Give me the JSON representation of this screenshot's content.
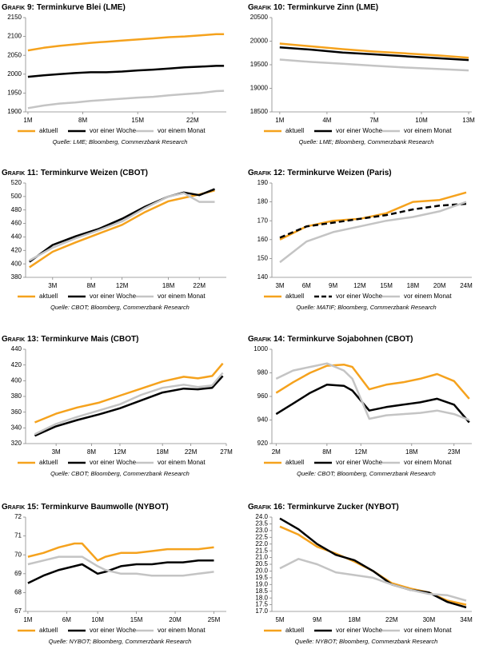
{
  "chart_data": [
    {
      "type": "line",
      "label": "Grafik 9:",
      "title": "Terminkurve Blei (LME)",
      "source": "Quelle: LME; Bloomberg, Commerzbank Research",
      "x": [
        1,
        3,
        5,
        7,
        9,
        11,
        13,
        15,
        17,
        19,
        21,
        23,
        25,
        26
      ],
      "xlim": [
        0.7,
        26.3
      ],
      "xticks": [
        {
          "value": 1,
          "label": "1M"
        },
        {
          "value": 8,
          "label": "8M"
        },
        {
          "value": 15,
          "label": "15M"
        },
        {
          "value": 22,
          "label": "22M"
        }
      ],
      "ylim": [
        1900,
        2150
      ],
      "yticks": [
        1900,
        1950,
        2000,
        2050,
        2100,
        2150
      ],
      "series": [
        {
          "name": "aktuell",
          "color": "#f5a21d",
          "values": [
            2063,
            2070,
            2075,
            2079,
            2083,
            2086,
            2089,
            2092,
            2095,
            2098,
            2100,
            2103,
            2106,
            2106
          ]
        },
        {
          "name": "vor einer Woche",
          "color": "#000000",
          "values": [
            1993,
            1997,
            2000,
            2003,
            2005,
            2005,
            2007,
            2010,
            2012,
            2015,
            2018,
            2020,
            2022,
            2022
          ]
        },
        {
          "name": "vor einem Monat",
          "color": "#c4c4c4",
          "values": [
            1910,
            1917,
            1922,
            1925,
            1929,
            1932,
            1935,
            1938,
            1940,
            1944,
            1947,
            1950,
            1955,
            1956
          ]
        }
      ]
    },
    {
      "type": "line",
      "label": "Grafik 10:",
      "title": "Terminkurve Zinn (LME)",
      "source": "Quelle: LME; Bloomberg, Commerzbank Research",
      "x": [
        1,
        3,
        5,
        7,
        9,
        11,
        13
      ],
      "xlim": [
        0.5,
        13.2
      ],
      "xticks": [
        {
          "value": 1,
          "label": "1M"
        },
        {
          "value": 4,
          "label": "4M"
        },
        {
          "value": 7,
          "label": "7M"
        },
        {
          "value": 10,
          "label": "10M"
        },
        {
          "value": 13,
          "label": "13M"
        }
      ],
      "ylim": [
        18500,
        20500
      ],
      "yticks": [
        18500,
        19000,
        19500,
        20000,
        20500
      ],
      "series": [
        {
          "name": "aktuell",
          "color": "#f5a21d",
          "values": [
            19950,
            19890,
            19830,
            19780,
            19740,
            19700,
            19650
          ]
        },
        {
          "name": "vor einer Woche",
          "color": "#000000",
          "values": [
            19870,
            19820,
            19760,
            19720,
            19680,
            19640,
            19600
          ]
        },
        {
          "name": "vor einem Monat",
          "color": "#c4c4c4",
          "values": [
            19610,
            19560,
            19520,
            19480,
            19440,
            19410,
            19380
          ]
        }
      ]
    },
    {
      "type": "line",
      "label": "Grafik 11:",
      "title": "Terminkurve Weizen (CBOT)",
      "source": "Quelle: CBOT; Bloomberg, Commerzbank Research",
      "x": [
        0,
        3,
        6,
        9,
        12,
        15,
        18,
        20,
        22,
        24
      ],
      "xlim": [
        -0.5,
        25.5
      ],
      "xticks": [
        {
          "value": 3,
          "label": "3M"
        },
        {
          "value": 8,
          "label": "8M"
        },
        {
          "value": 12,
          "label": "12M"
        },
        {
          "value": 18,
          "label": "18M"
        },
        {
          "value": 22,
          "label": "22M"
        }
      ],
      "ylim": [
        380,
        520
      ],
      "yticks": [
        380,
        400,
        420,
        440,
        460,
        480,
        500,
        520
      ],
      "series": [
        {
          "name": "aktuell",
          "color": "#f5a21d",
          "values": [
            395,
            418,
            432,
            445,
            458,
            477,
            493,
            498,
            503,
            509
          ]
        },
        {
          "name": "vor einer Woche",
          "color": "#000000",
          "values": [
            403,
            428,
            441,
            452,
            467,
            485,
            500,
            506,
            502,
            511
          ]
        },
        {
          "name": "vor einem Monat",
          "color": "#c4c4c4",
          "values": [
            405,
            424,
            438,
            450,
            463,
            483,
            500,
            505,
            492,
            492
          ]
        }
      ]
    },
    {
      "type": "line",
      "label": "Grafik 12:",
      "title": "Terminkurve Weizen (Paris)",
      "source": "Quelle: MATIF; Bloomberg, Commerzbank Research",
      "categories": [
        "3M",
        "6M",
        "9M",
        "12M",
        "15M",
        "18M",
        "20M",
        "24M"
      ],
      "ylim": [
        140,
        190
      ],
      "yticks": [
        140,
        150,
        160,
        170,
        180,
        190
      ],
      "series": [
        {
          "name": "aktuell",
          "color": "#f5a21d",
          "values": [
            160,
            167,
            170,
            171,
            174,
            180,
            181,
            185
          ]
        },
        {
          "name": "vor einer Woche",
          "color": "#000000",
          "dash": true,
          "values": [
            161,
            167,
            169,
            171,
            173,
            176,
            178,
            179
          ]
        },
        {
          "name": "vor einem Monat",
          "color": "#c4c4c4",
          "values": [
            148,
            159,
            164,
            167,
            170,
            172,
            175,
            180
          ]
        }
      ]
    },
    {
      "type": "line",
      "label": "Grafik 13:",
      "title": "Terminkurve Mais (CBOT)",
      "source": "Quelle: CBOT; Bloomberg, Commerzbank Research",
      "x": [
        0,
        3,
        6,
        9,
        12,
        15,
        18,
        21,
        23,
        25,
        26.5
      ],
      "xlim": [
        -1.3,
        27
      ],
      "xticks": [
        {
          "value": 3,
          "label": "3M"
        },
        {
          "value": 8,
          "label": "8M"
        },
        {
          "value": 12,
          "label": "12M"
        },
        {
          "value": 18,
          "label": "18M"
        },
        {
          "value": 22,
          "label": "22M"
        },
        {
          "value": 27,
          "label": "27M"
        }
      ],
      "ylim": [
        320,
        440
      ],
      "yticks": [
        320,
        340,
        360,
        380,
        400,
        420,
        440
      ],
      "series": [
        {
          "name": "aktuell",
          "color": "#f5a21d",
          "values": [
            347,
            358,
            366,
            372,
            381,
            390,
            399,
            405,
            403,
            406,
            422
          ]
        },
        {
          "name": "vor einer Woche",
          "color": "#000000",
          "values": [
            330,
            342,
            350,
            357,
            365,
            375,
            385,
            390,
            389,
            391,
            406
          ]
        },
        {
          "name": "vor einem Monat",
          "color": "#c4c4c4",
          "values": [
            332,
            345,
            354,
            362,
            370,
            382,
            391,
            395,
            392,
            394,
            410
          ]
        }
      ]
    },
    {
      "type": "line",
      "label": "Grafik 14:",
      "title": "Terminkurve Sojabohnen (CBOT)",
      "source": "Quelle: CBOT; Bloomberg, Commerzbank Research",
      "x": [
        2,
        4,
        6,
        8,
        10,
        11,
        13,
        15,
        17,
        19,
        21,
        23,
        24.8
      ],
      "xlim": [
        1.5,
        25.1
      ],
      "xticks": [
        {
          "value": 2,
          "label": "2M"
        },
        {
          "value": 8,
          "label": "8M"
        },
        {
          "value": 12,
          "label": "12M"
        },
        {
          "value": 18,
          "label": "18M"
        },
        {
          "value": 23,
          "label": "23M"
        }
      ],
      "ylim": [
        920,
        1000
      ],
      "yticks": [
        920,
        940,
        960,
        980,
        1000
      ],
      "series": [
        {
          "name": "aktuell",
          "color": "#f5a21d",
          "values": [
            963,
            972,
            980,
            986,
            987,
            985,
            966,
            970,
            972,
            975,
            979,
            973,
            958
          ]
        },
        {
          "name": "vor einer Woche",
          "color": "#000000",
          "values": [
            945,
            954,
            963,
            970,
            969,
            965,
            948,
            951,
            953,
            955,
            958,
            953,
            938
          ]
        },
        {
          "name": "vor einem Monat",
          "color": "#c4c4c4",
          "values": [
            975,
            982,
            985,
            988,
            982,
            975,
            941,
            944,
            945,
            946,
            948,
            945,
            940
          ]
        }
      ]
    },
    {
      "type": "line",
      "label": "Grafik 15:",
      "title": "Terminkurve Baumwolle (NYBOT)",
      "source": "Quelle: NYBOT; Bloomberg, Commerzbank Research",
      "x": [
        1,
        3,
        5,
        7,
        8,
        10,
        11,
        13,
        15,
        17,
        19,
        21,
        23,
        25
      ],
      "xlim": [
        0.7,
        26.6
      ],
      "xticks": [
        {
          "value": 1,
          "label": "1M"
        },
        {
          "value": 6,
          "label": "6M"
        },
        {
          "value": 10,
          "label": "10M"
        },
        {
          "value": 15,
          "label": "15M"
        },
        {
          "value": 20,
          "label": "20M"
        },
        {
          "value": 25,
          "label": "25M"
        }
      ],
      "ylim": [
        67,
        72
      ],
      "yticks": [
        67,
        68,
        69,
        70,
        71,
        72
      ],
      "series": [
        {
          "name": "aktuell",
          "color": "#f5a21d",
          "values": [
            69.9,
            70.1,
            70.4,
            70.6,
            70.6,
            69.7,
            69.9,
            70.1,
            70.1,
            70.2,
            70.3,
            70.3,
            70.3,
            70.4
          ]
        },
        {
          "name": "vor einer Woche",
          "color": "#000000",
          "values": [
            68.5,
            68.9,
            69.2,
            69.4,
            69.5,
            69.0,
            69.1,
            69.4,
            69.5,
            69.5,
            69.6,
            69.6,
            69.7,
            69.7
          ]
        },
        {
          "name": "vor einem Monat",
          "color": "#c4c4c4",
          "values": [
            69.5,
            69.7,
            69.9,
            69.9,
            69.9,
            69.4,
            69.2,
            69.0,
            69.0,
            68.9,
            68.9,
            68.9,
            69.0,
            69.1
          ]
        }
      ]
    },
    {
      "type": "line",
      "label": "Grafik 16:",
      "title": "Terminkurve Zucker (NYBOT)",
      "source": "Quelle: NYBOT; Bloomberg, Commerzbank Research",
      "categories": [
        "5M",
        null,
        "9M",
        null,
        "18M",
        null,
        "22M",
        null,
        "30M",
        null,
        "34M"
      ],
      "ylim": [
        17,
        24
      ],
      "yticks": [
        {
          "value": 17,
          "label": "17.0"
        },
        17.5,
        {
          "value": 18,
          "label": "18.0"
        },
        18.5,
        {
          "value": 19,
          "label": "19.0"
        },
        19.5,
        {
          "value": 20,
          "label": "20.0"
        },
        20.5,
        {
          "value": 21,
          "label": "21.0"
        },
        21.5,
        {
          "value": 22,
          "label": "22.0"
        },
        22.5,
        {
          "value": 23,
          "label": "23.0"
        },
        23.5,
        {
          "value": 24,
          "label": "24.0"
        }
      ],
      "series": [
        {
          "name": "aktuell",
          "color": "#f5a21d",
          "values": [
            23.3,
            22.7,
            21.8,
            21.3,
            20.7,
            20.0,
            19.1,
            18.7,
            18.4,
            17.8,
            17.5
          ]
        },
        {
          "name": "vor einer Woche",
          "color": "#000000",
          "values": [
            23.9,
            23.1,
            22.0,
            21.2,
            20.8,
            20.0,
            19.0,
            18.6,
            18.4,
            17.7,
            17.3
          ]
        },
        {
          "name": "vor einem Monat",
          "color": "#c4c4c4",
          "values": [
            20.2,
            20.9,
            20.5,
            19.9,
            19.7,
            19.5,
            19.0,
            18.6,
            18.3,
            18.2,
            17.8
          ]
        }
      ]
    }
  ]
}
